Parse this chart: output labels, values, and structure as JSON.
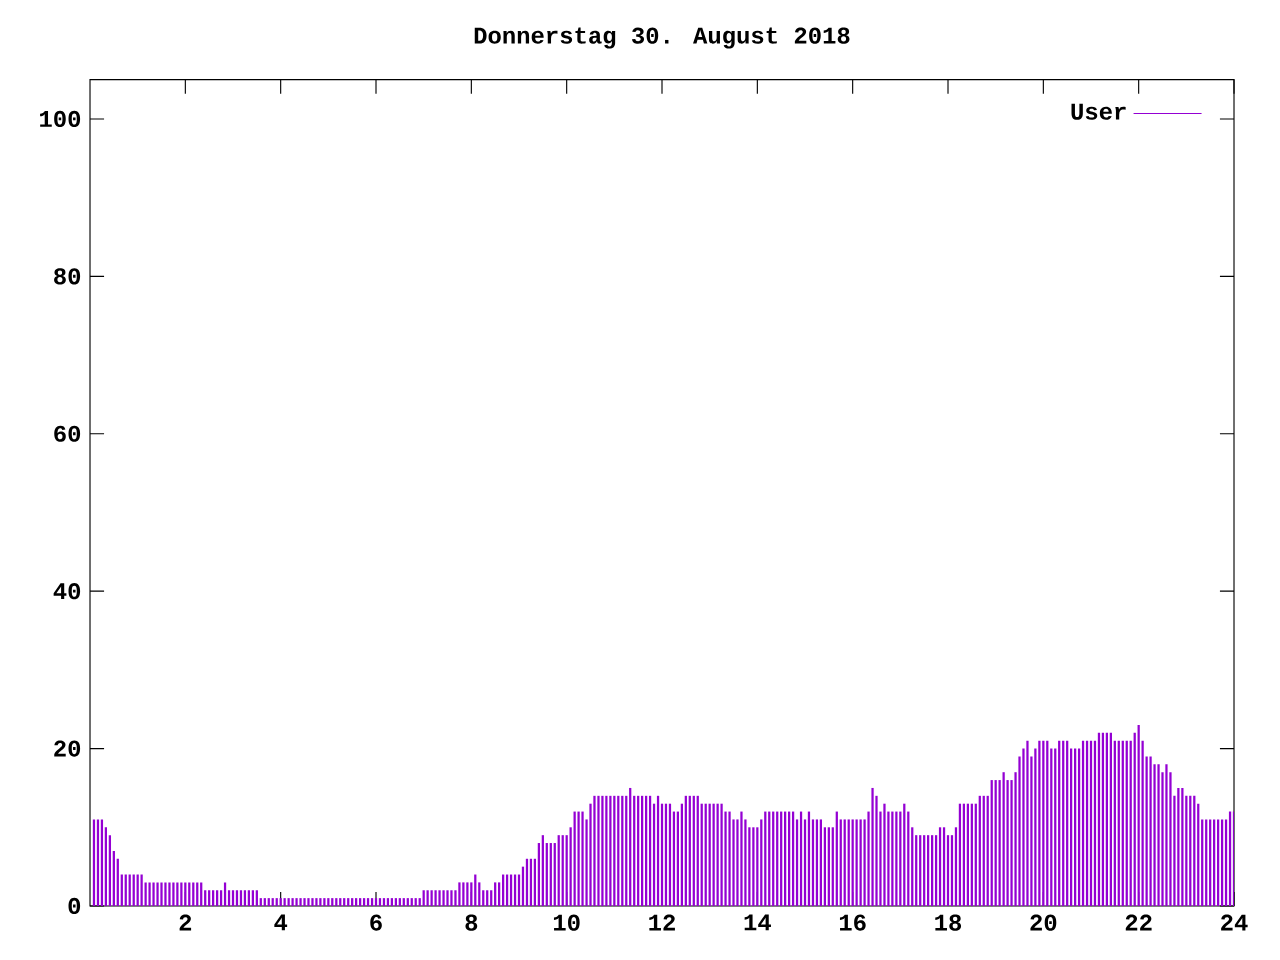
{
  "chart_data": {
    "type": "bar",
    "title": "Donnerstag 30. August 2018",
    "x": [
      0.083,
      0.167,
      0.25,
      0.333,
      0.417,
      0.5,
      0.583,
      0.667,
      0.75,
      0.833,
      0.917,
      1,
      1.083,
      1.167,
      1.25,
      1.333,
      1.417,
      1.5,
      1.583,
      1.667,
      1.75,
      1.833,
      1.917,
      2,
      2.083,
      2.167,
      2.25,
      2.333,
      2.417,
      2.5,
      2.583,
      2.667,
      2.75,
      2.833,
      2.917,
      3,
      3.083,
      3.167,
      3.25,
      3.333,
      3.417,
      3.5,
      3.583,
      3.667,
      3.75,
      3.833,
      3.917,
      4,
      4.083,
      4.167,
      4.25,
      4.333,
      4.417,
      4.5,
      4.583,
      4.667,
      4.75,
      4.833,
      4.917,
      5,
      5.083,
      5.167,
      5.25,
      5.333,
      5.417,
      5.5,
      5.583,
      5.667,
      5.75,
      5.833,
      5.917,
      6,
      6.083,
      6.167,
      6.25,
      6.333,
      6.417,
      6.5,
      6.583,
      6.667,
      6.75,
      6.833,
      6.917,
      7,
      7.083,
      7.167,
      7.25,
      7.333,
      7.417,
      7.5,
      7.583,
      7.667,
      7.75,
      7.833,
      7.917,
      8,
      8.083,
      8.167,
      8.25,
      8.333,
      8.417,
      8.5,
      8.583,
      8.667,
      8.75,
      8.833,
      8.917,
      9,
      9.083,
      9.167,
      9.25,
      9.333,
      9.417,
      9.5,
      9.583,
      9.667,
      9.75,
      9.833,
      9.917,
      10,
      10.083,
      10.167,
      10.25,
      10.333,
      10.417,
      10.5,
      10.583,
      10.667,
      10.75,
      10.833,
      10.917,
      11,
      11.083,
      11.167,
      11.25,
      11.333,
      11.417,
      11.5,
      11.583,
      11.667,
      11.75,
      11.833,
      11.917,
      12,
      12.083,
      12.167,
      12.25,
      12.333,
      12.417,
      12.5,
      12.583,
      12.667,
      12.75,
      12.833,
      12.917,
      13,
      13.083,
      13.167,
      13.25,
      13.333,
      13.417,
      13.5,
      13.583,
      13.667,
      13.75,
      13.833,
      13.917,
      14,
      14.083,
      14.167,
      14.25,
      14.333,
      14.417,
      14.5,
      14.583,
      14.667,
      14.75,
      14.833,
      14.917,
      15,
      15.083,
      15.167,
      15.25,
      15.333,
      15.417,
      15.5,
      15.583,
      15.667,
      15.75,
      15.833,
      15.917,
      16,
      16.083,
      16.167,
      16.25,
      16.333,
      16.417,
      16.5,
      16.583,
      16.667,
      16.75,
      16.833,
      16.917,
      17,
      17.083,
      17.167,
      17.25,
      17.333,
      17.417,
      17.5,
      17.583,
      17.667,
      17.75,
      17.833,
      17.917,
      18,
      18.083,
      18.167,
      18.25,
      18.333,
      18.417,
      18.5,
      18.583,
      18.667,
      18.75,
      18.833,
      18.917,
      19,
      19.083,
      19.167,
      19.25,
      19.333,
      19.417,
      19.5,
      19.583,
      19.667,
      19.75,
      19.833,
      19.917,
      20,
      20.083,
      20.167,
      20.25,
      20.333,
      20.417,
      20.5,
      20.583,
      20.667,
      20.75,
      20.833,
      20.917,
      21,
      21.083,
      21.167,
      21.25,
      21.333,
      21.417,
      21.5,
      21.583,
      21.667,
      21.75,
      21.833,
      21.917,
      22,
      22.083,
      22.167,
      22.25,
      22.333,
      22.417,
      22.5,
      22.583,
      22.667,
      22.75,
      22.833,
      22.917,
      23,
      23.083,
      23.167,
      23.25,
      23.333,
      23.417,
      23.5,
      23.583,
      23.667,
      23.75,
      23.833,
      23.917,
      24
    ],
    "series": [
      {
        "name": "User",
        "color": "#9400d3",
        "values": [
          11,
          11,
          11,
          10,
          9,
          7,
          6,
          4,
          4,
          4,
          4,
          4,
          4,
          3,
          3,
          3,
          3,
          3,
          3,
          3,
          3,
          3,
          3,
          3,
          3,
          3,
          3,
          3,
          2,
          2,
          2,
          2,
          2,
          3,
          2,
          2,
          2,
          2,
          2,
          2,
          2,
          2,
          1,
          1,
          1,
          1,
          1,
          1,
          1,
          1,
          1,
          1,
          1,
          1,
          1,
          1,
          1,
          1,
          1,
          1,
          1,
          1,
          1,
          1,
          1,
          1,
          1,
          1,
          1,
          1,
          1,
          1,
          1,
          1,
          1,
          1,
          1,
          1,
          1,
          1,
          1,
          1,
          1,
          2,
          2,
          2,
          2,
          2,
          2,
          2,
          2,
          2,
          3,
          3,
          3,
          3,
          4,
          3,
          2,
          2,
          2,
          3,
          3,
          4,
          4,
          4,
          4,
          4,
          5,
          6,
          6,
          6,
          8,
          9,
          8,
          8,
          8,
          9,
          9,
          9,
          10,
          12,
          12,
          12,
          11,
          13,
          14,
          14,
          14,
          14,
          14,
          14,
          14,
          14,
          14,
          15,
          14,
          14,
          14,
          14,
          14,
          13,
          14,
          13,
          13,
          13,
          12,
          12,
          13,
          14,
          14,
          14,
          14,
          13,
          13,
          13,
          13,
          13,
          13,
          12,
          12,
          11,
          11,
          12,
          11,
          10,
          10,
          10,
          11,
          12,
          12,
          12,
          12,
          12,
          12,
          12,
          12,
          11,
          12,
          11,
          12,
          11,
          11,
          11,
          10,
          10,
          10,
          12,
          11,
          11,
          11,
          11,
          11,
          11,
          11,
          12,
          15,
          14,
          12,
          13,
          12,
          12,
          12,
          12,
          13,
          12,
          10,
          9,
          9,
          9,
          9,
          9,
          9,
          10,
          10,
          9,
          9,
          10,
          13,
          13,
          13,
          13,
          13,
          14,
          14,
          14,
          16,
          16,
          16,
          17,
          16,
          16,
          17,
          19,
          20,
          21,
          19,
          20,
          21,
          21,
          21,
          20,
          20,
          21,
          21,
          21,
          20,
          20,
          20,
          21,
          21,
          21,
          21,
          22,
          22,
          22,
          22,
          21,
          21,
          21,
          21,
          21,
          22,
          23,
          21,
          19,
          19,
          18,
          18,
          17,
          18,
          17,
          14,
          15,
          15,
          14,
          14,
          14,
          13,
          11,
          11,
          11,
          11,
          11,
          11,
          11,
          12,
          12
        ]
      }
    ],
    "xlim": [
      0,
      24
    ],
    "xticks": [
      2,
      4,
      6,
      8,
      10,
      12,
      14,
      16,
      18,
      20,
      22,
      24
    ],
    "ylim": [
      0,
      105
    ],
    "yticks": [
      0,
      20,
      40,
      60,
      80,
      100
    ],
    "legend": "top right"
  }
}
